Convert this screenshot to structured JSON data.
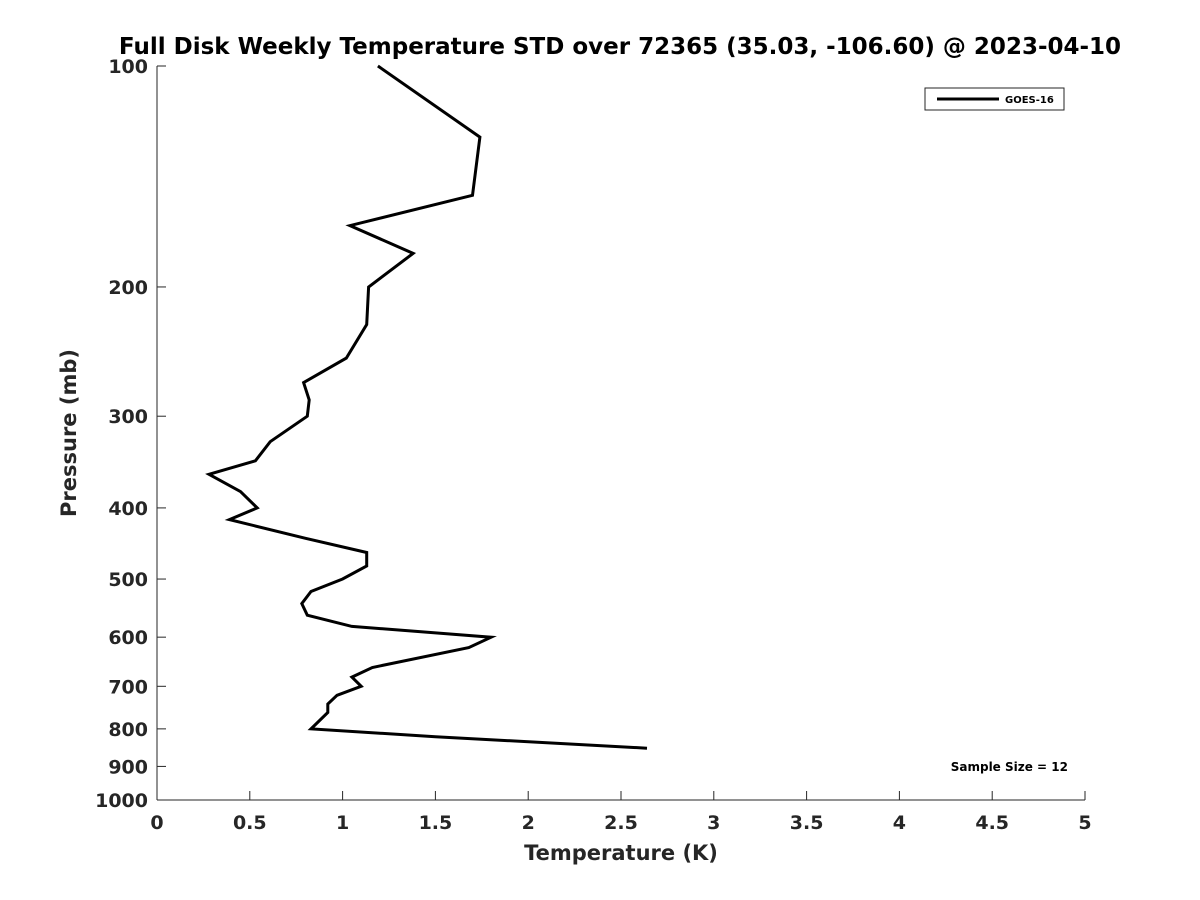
{
  "chart_data": {
    "type": "line",
    "title": "Full Disk Weekly Temperature STD over 72365 (35.03, -106.60) @ 2023-04-10",
    "xlabel": "Temperature (K)",
    "ylabel": "Pressure (mb)",
    "xlim": [
      0,
      5
    ],
    "ylim": [
      100,
      1000
    ],
    "y_scale": "log",
    "y_reversed": true,
    "x_ticks": [
      "0",
      "0.5",
      "1",
      "1.5",
      "2",
      "2.5",
      "3",
      "3.5",
      "4",
      "4.5",
      "5"
    ],
    "y_ticks": [
      "100",
      "200",
      "300",
      "400",
      "500",
      "600",
      "700",
      "800",
      "900",
      "1000"
    ],
    "grid": false,
    "legend_position": "top-right",
    "annotation": "Sample Size = 12",
    "series": [
      {
        "name": "GOES-16",
        "color": "#000000",
        "points": [
          [
            1.19,
            100
          ],
          [
            1.74,
            125
          ],
          [
            1.7,
            150
          ],
          [
            1.04,
            165
          ],
          [
            1.38,
            180
          ],
          [
            1.14,
            200
          ],
          [
            1.13,
            225
          ],
          [
            1.02,
            250
          ],
          [
            0.79,
            270
          ],
          [
            0.82,
            285
          ],
          [
            0.81,
            300
          ],
          [
            0.61,
            325
          ],
          [
            0.53,
            345
          ],
          [
            0.28,
            360
          ],
          [
            0.45,
            380
          ],
          [
            0.54,
            400
          ],
          [
            0.39,
            415
          ],
          [
            0.8,
            440
          ],
          [
            1.13,
            460
          ],
          [
            1.13,
            480
          ],
          [
            1.0,
            500
          ],
          [
            0.83,
            520
          ],
          [
            0.78,
            540
          ],
          [
            0.81,
            560
          ],
          [
            1.05,
            580
          ],
          [
            1.8,
            600
          ],
          [
            1.68,
            620
          ],
          [
            1.16,
            660
          ],
          [
            1.05,
            680
          ],
          [
            1.1,
            700
          ],
          [
            0.97,
            720
          ],
          [
            0.92,
            740
          ],
          [
            0.92,
            760
          ],
          [
            0.83,
            800
          ],
          [
            1.5,
            820
          ],
          [
            2.64,
            850
          ]
        ]
      }
    ]
  }
}
